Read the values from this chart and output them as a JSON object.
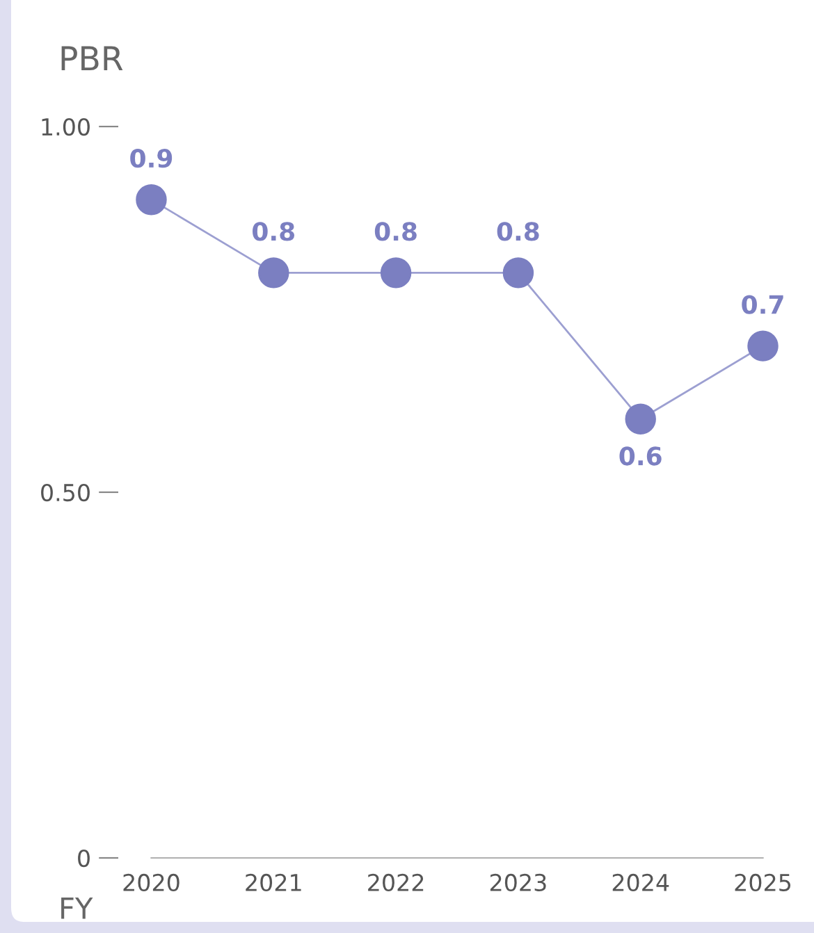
{
  "chart_data": {
    "type": "line",
    "title": "PBR",
    "xlabel": "FY",
    "categories": [
      "2020",
      "2021",
      "2022",
      "2023",
      "2024",
      "2025"
    ],
    "series": [
      {
        "color": "#7b7fc1",
        "values": [
          0.9,
          0.8,
          0.8,
          0.8,
          0.6,
          0.7
        ]
      }
    ],
    "ylim": [
      0,
      1
    ],
    "yticks": [
      {
        "value": 0,
        "label": "0"
      },
      {
        "value": 0.5,
        "label": "0.50"
      },
      {
        "value": 1,
        "label": "1.00"
      }
    ],
    "marker": "circle",
    "line_style": "solid",
    "data_labels": true,
    "grid": false,
    "legend": false
  }
}
